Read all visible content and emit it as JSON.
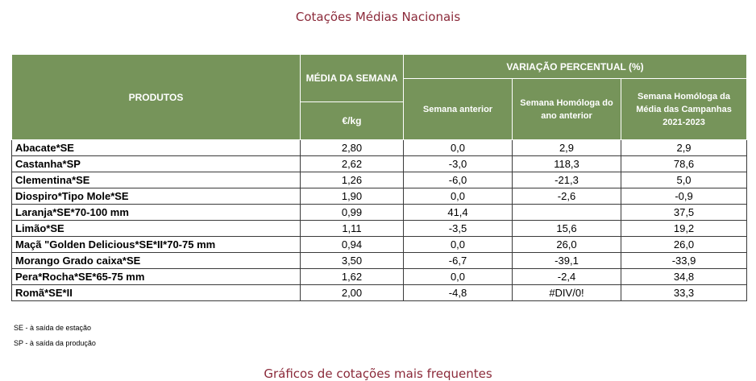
{
  "title": "Cotações Médias Nacionais",
  "header": {
    "produtos": "PRODUTOS",
    "media": "MÉDIA DA SEMANA",
    "unit": "€/kg",
    "variacao": "VARIAÇÃO PERCENTUAL (%)",
    "sem_anterior": "Semana anterior",
    "sem_homologa": "Semana Homóloga do ano anterior",
    "sem_homologa_media": "Semana Homóloga da Média das Campanhas 2021-2023"
  },
  "rows": [
    {
      "produto": "Abacate*SE",
      "media": "2,80",
      "anterior": "0,0",
      "homologa": "2,9",
      "campanhas": "2,9"
    },
    {
      "produto": "Castanha*SP",
      "media": "2,62",
      "anterior": "-3,0",
      "homologa": "118,3",
      "campanhas": "78,6"
    },
    {
      "produto": "Clementina*SE",
      "media": "1,26",
      "anterior": "-6,0",
      "homologa": "-21,3",
      "campanhas": "5,0"
    },
    {
      "produto": "Diospiro*Tipo Mole*SE",
      "media": "1,90",
      "anterior": "0,0",
      "homologa": "-2,6",
      "campanhas": "-0,9"
    },
    {
      "produto": "Laranja*SE*70-100 mm",
      "media": "0,99",
      "anterior": "41,4",
      "homologa": "",
      "campanhas": "37,5"
    },
    {
      "produto": "Limão*SE",
      "media": "1,11",
      "anterior": "-3,5",
      "homologa": "15,6",
      "campanhas": "19,2"
    },
    {
      "produto": "Maçã \"Golden Delicious*SE*II*70-75 mm",
      "media": "0,94",
      "anterior": "0,0",
      "homologa": "26,0",
      "campanhas": "26,0"
    },
    {
      "produto": "Morango Grado caixa*SE",
      "media": "3,50",
      "anterior": "-6,7",
      "homologa": "-39,1",
      "campanhas": "-33,9"
    },
    {
      "produto": "Pera*Rocha*SE*65-75 mm",
      "media": "1,62",
      "anterior": "0,0",
      "homologa": "-2,4",
      "campanhas": "34,8"
    },
    {
      "produto": "Romã*SE*II",
      "media": "2,00",
      "anterior": "-4,8",
      "homologa": "#DIV/0!",
      "campanhas": "33,3"
    }
  ],
  "footnotes": [
    "SE - à saída de estação",
    "SP - à saída da produção"
  ],
  "bottom_title": "Gráficos de cotações mais frequentes"
}
